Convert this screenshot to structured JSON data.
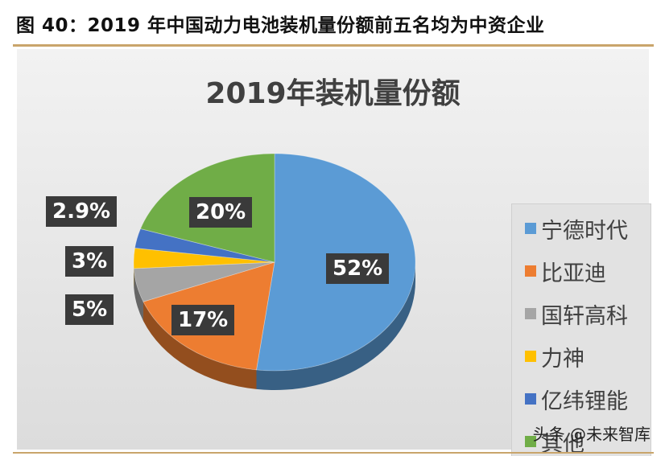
{
  "figure_caption": "图 40：2019 年中国动力电池装机量份额前五名均为中资企业",
  "watermark": "头条 @未来智库",
  "chart_data": {
    "type": "pie",
    "title": "2019年装机量份额",
    "categories": [
      "宁德时代",
      "比亚迪",
      "国轩高科",
      "力神",
      "亿纬锂能",
      "其他"
    ],
    "values": [
      52,
      17,
      5,
      3,
      2.9,
      20
    ],
    "data_labels": [
      "52%",
      "17%",
      "5%",
      "3%",
      "2.9%",
      "20%"
    ],
    "colors": [
      "#5b9bd5",
      "#ed7d31",
      "#a5a5a5",
      "#ffc000",
      "#4472c4",
      "#70ad47"
    ],
    "legend": "right",
    "start_angle": "12-o'clock",
    "direction": "clockwise"
  }
}
